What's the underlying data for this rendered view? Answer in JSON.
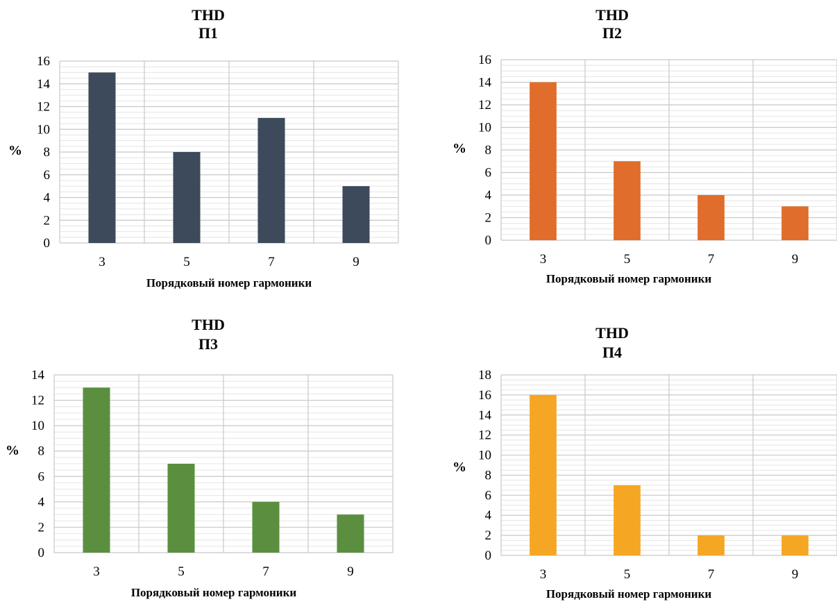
{
  "chart_data": [
    {
      "type": "bar",
      "title": "THD",
      "subtitle": "П1",
      "xlabel": "Порядковый номер гармоники",
      "ylabel": "%",
      "categories": [
        "3",
        "5",
        "7",
        "9"
      ],
      "values": [
        15,
        8,
        11,
        5
      ],
      "ylim": [
        0,
        16
      ],
      "yticks": [
        0,
        2,
        4,
        6,
        8,
        10,
        12,
        14,
        16
      ],
      "color": "#3c4a5c",
      "grid": true
    },
    {
      "type": "bar",
      "title": "THD",
      "subtitle": "П2",
      "xlabel": "Порядковый номер гармоники",
      "ylabel": "%",
      "categories": [
        "3",
        "5",
        "7",
        "9"
      ],
      "values": [
        14,
        7,
        4,
        3
      ],
      "ylim": [
        0,
        16
      ],
      "yticks": [
        0,
        2,
        4,
        6,
        8,
        10,
        12,
        14,
        16
      ],
      "color": "#e06d2b",
      "grid": true
    },
    {
      "type": "bar",
      "title": "THD",
      "subtitle": "П3",
      "xlabel": "Порядковый номер гармоники",
      "ylabel": "%",
      "categories": [
        "3",
        "5",
        "7",
        "9"
      ],
      "values": [
        13,
        7,
        4,
        3
      ],
      "ylim": [
        0,
        14
      ],
      "yticks": [
        0,
        2,
        4,
        6,
        8,
        10,
        12,
        14
      ],
      "color": "#5b8f3f",
      "grid": true
    },
    {
      "type": "bar",
      "title": "THD",
      "subtitle": "П4",
      "xlabel": "Порядковый номер гармоники",
      "ylabel": "%",
      "categories": [
        "3",
        "5",
        "7",
        "9"
      ],
      "values": [
        16,
        7,
        2,
        2
      ],
      "ylim": [
        0,
        18
      ],
      "yticks": [
        0,
        2,
        4,
        6,
        8,
        10,
        12,
        14,
        16,
        18
      ],
      "color": "#f5a623",
      "grid": true
    }
  ]
}
